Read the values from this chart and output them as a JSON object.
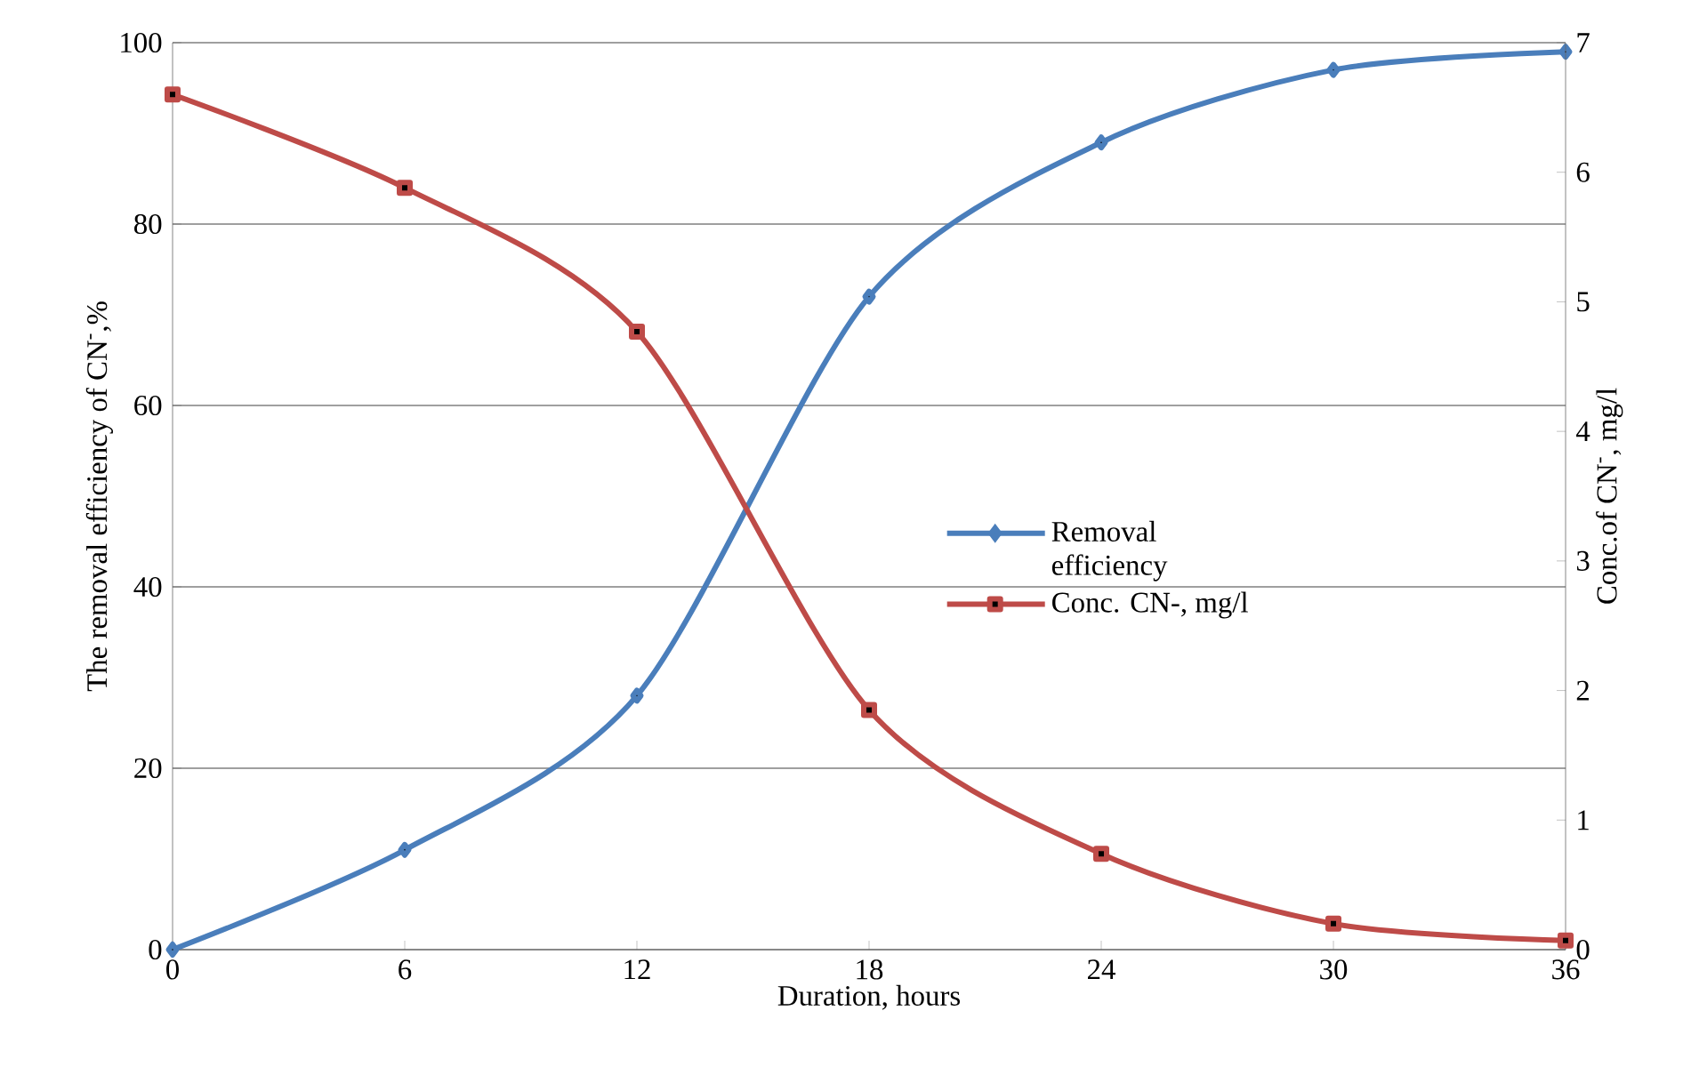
{
  "chart_data": {
    "type": "line",
    "xlabel": "Duration, hours",
    "ylabel": "The removal efficiency of CN$^{-}$,%",
    "y2label": "Conc.of CN$^{-}$, mg/l",
    "x": [
      0,
      6,
      12,
      18,
      24,
      30,
      36
    ],
    "series": [
      {
        "name": "Removal efficiency",
        "color": "#4a7ebb",
        "marker": "diamond",
        "values": [
          0,
          11,
          28,
          72,
          89,
          97,
          99
        ]
      },
      {
        "name": "Conc. CN-, mg/l",
        "color": "#be4b48",
        "marker": "square",
        "axis": "y2",
        "values": [
          6.6,
          5.88,
          4.77,
          1.85,
          0.74,
          0.2,
          0.07
        ]
      }
    ],
    "xlim": [
      0,
      36
    ],
    "xticks": [
      0,
      6,
      12,
      18,
      24,
      30,
      36
    ],
    "ylim": [
      0,
      100
    ],
    "yticks": [
      0,
      20,
      40,
      60,
      80,
      100
    ],
    "y2lim": [
      0,
      7
    ],
    "y2ticks": [
      0,
      1,
      2,
      3,
      4,
      5,
      6,
      7
    ],
    "grid": "y",
    "legend": "right",
    "line_style": "solid"
  }
}
